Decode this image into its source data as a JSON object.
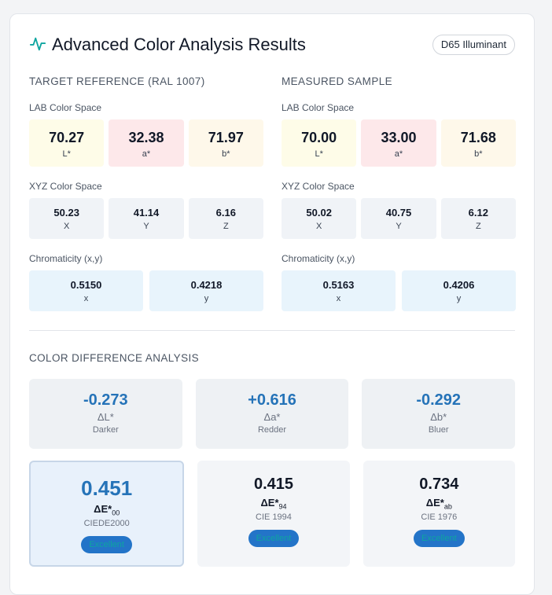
{
  "header": {
    "title": "Advanced Color Analysis Results",
    "badge": "D65 Illuminant",
    "icon": "activity-pulse-icon",
    "accent": "#0ea5a0"
  },
  "target": {
    "title": "Target Reference (RAL 1007)",
    "lab_label": "LAB Color Space",
    "lab": [
      {
        "value": "70.27",
        "label": "L*"
      },
      {
        "value": "32.38",
        "label": "a*"
      },
      {
        "value": "71.97",
        "label": "b*"
      }
    ],
    "xyz_label": "XYZ Color Space",
    "xyz": [
      {
        "value": "50.23",
        "label": "X"
      },
      {
        "value": "41.14",
        "label": "Y"
      },
      {
        "value": "6.16",
        "label": "Z"
      }
    ],
    "chroma_label": "Chromaticity (x,y)",
    "chroma": [
      {
        "value": "0.5150",
        "label": "x"
      },
      {
        "value": "0.4218",
        "label": "y"
      }
    ]
  },
  "measured": {
    "title": "Measured Sample",
    "lab_label": "LAB Color Space",
    "lab": [
      {
        "value": "70.00",
        "label": "L*"
      },
      {
        "value": "33.00",
        "label": "a*"
      },
      {
        "value": "71.68",
        "label": "b*"
      }
    ],
    "xyz_label": "XYZ Color Space",
    "xyz": [
      {
        "value": "50.02",
        "label": "X"
      },
      {
        "value": "40.75",
        "label": "Y"
      },
      {
        "value": "6.12",
        "label": "Z"
      }
    ],
    "chroma_label": "Chromaticity (x,y)",
    "chroma": [
      {
        "value": "0.5163",
        "label": "x"
      },
      {
        "value": "0.4206",
        "label": "y"
      }
    ]
  },
  "difference": {
    "title": "Color Difference Analysis",
    "deltas": [
      {
        "value": "-0.273",
        "symbol": "ΔL*",
        "desc": "Darker"
      },
      {
        "value": "+0.616",
        "symbol": "Δa*",
        "desc": "Redder"
      },
      {
        "value": "-0.292",
        "symbol": "Δb*",
        "desc": "Bluer"
      }
    ],
    "delta_e": [
      {
        "value": "0.451",
        "symbol": "ΔE*",
        "sub": "00",
        "desc": "CIEDE2000",
        "rating": "Excellent"
      },
      {
        "value": "0.415",
        "symbol": "ΔE*",
        "sub": "94",
        "desc": "CIE 1994",
        "rating": "Excellent"
      },
      {
        "value": "0.734",
        "symbol": "ΔE*",
        "sub": "ab",
        "desc": "CIE 1976",
        "rating": "Excellent"
      }
    ]
  }
}
